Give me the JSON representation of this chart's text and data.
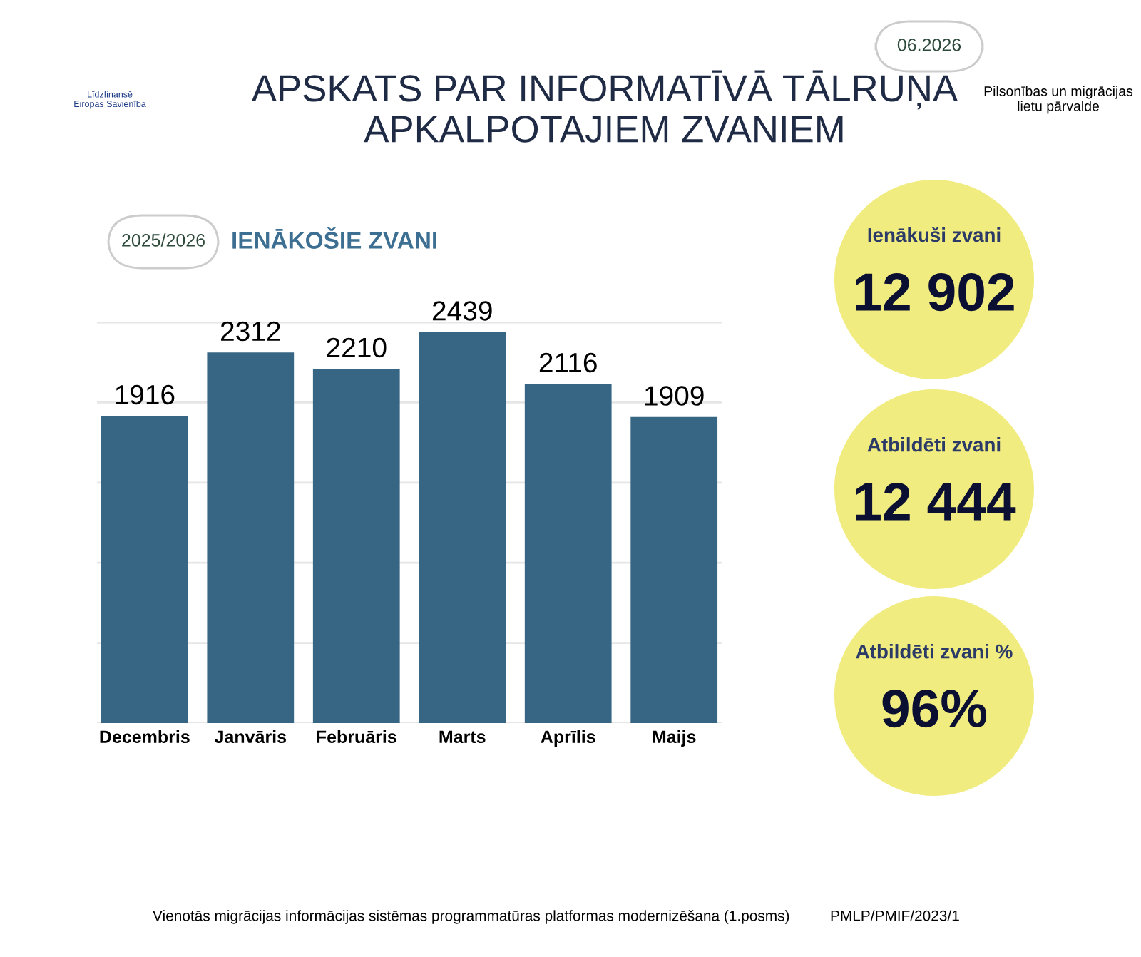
{
  "chart_data": {
    "type": "bar",
    "title": "APSKATS PAR INFORMATĪVĀ TĀLRUŅA\nAPKALPOTAJIEM ZVANIEM",
    "subtitle": "IENĀKOŠIE ZVANI",
    "categories": [
      "Decembris",
      "Janvāris",
      "Februāris",
      "Marts",
      "Aprīlis",
      "Maijs"
    ],
    "values": [
      1916,
      2312,
      2210,
      2439,
      2116,
      1909
    ],
    "color": "#376685",
    "data_labels": true,
    "ylim": [
      0,
      2500
    ],
    "yticks": [
      {
        "value": 0,
        "label": null
      },
      {
        "value": 500,
        "label": null
      },
      {
        "value": 1000,
        "label": null
      },
      {
        "value": 1500,
        "label": null
      },
      {
        "value": 2000,
        "label": null
      },
      {
        "value": 2500,
        "label": null
      }
    ],
    "grid": "y",
    "tick_labels": "x",
    "annotations": [
      "2025/2026",
      "06.2026",
      "Līdzfinansē\nEiropas Savienība",
      "Pilsonības un migrācijas\nlietu pārvalde",
      "Ienākuši zvani",
      "12 902",
      "Atbildēti zvani",
      "12 444",
      "Atbildēti zvani %",
      "96%",
      "Vienotās migrācijas informācijas sistēmas programmatūras platformas modernizēšana (1.posms)",
      "PMLP/PMIF/2023/1"
    ]
  }
}
